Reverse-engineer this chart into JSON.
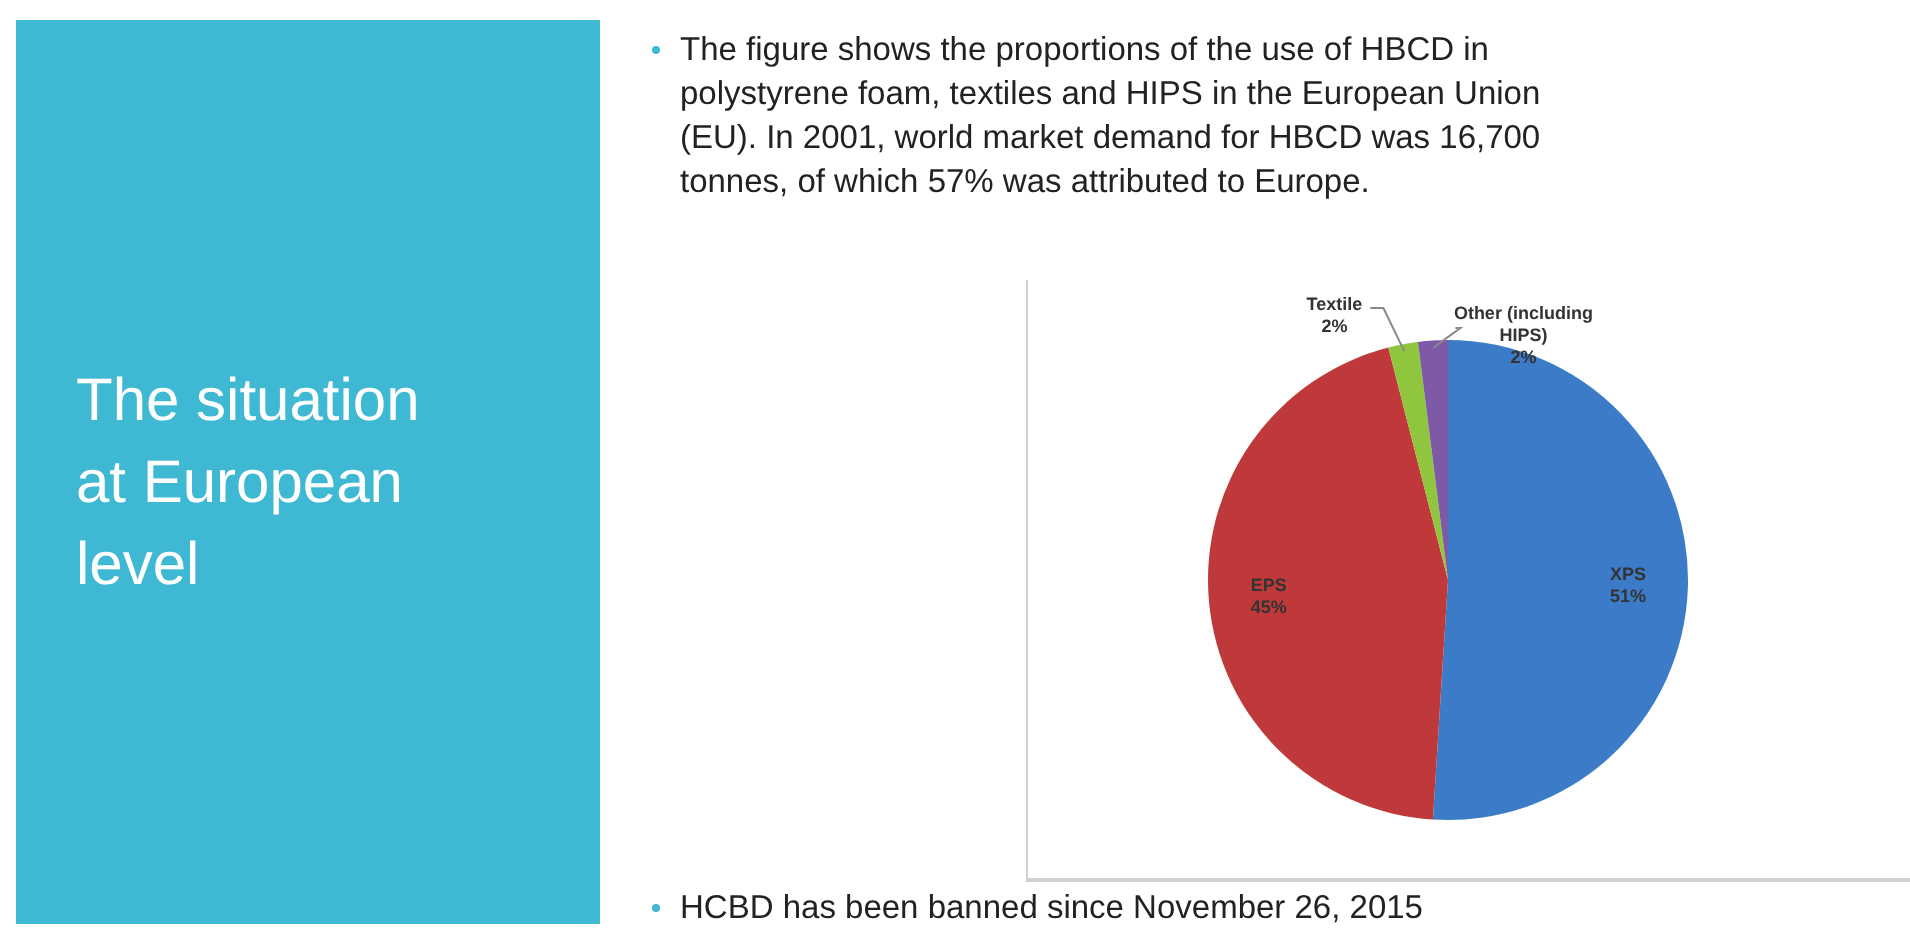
{
  "chart_data": {
    "type": "pie",
    "title": "The situation at European level",
    "annotations": [
      "The figure shows the proportions of the use of HBCD in polystyrene foam, textiles and HIPS in the European Union (EU). In 2001, world market demand for HBCD was 16,700 tonnes, of which 57% was attributed to Europe.",
      "HCBD has been banned since November 26, 2015"
    ],
    "categories": [
      "XPS",
      "EPS",
      "Textile",
      "Other (including HIPS)"
    ],
    "values": [
      51,
      45,
      2,
      2
    ],
    "value_labels": [
      "51%",
      "45%",
      "2%",
      "2%"
    ],
    "colors": [
      "#3c7bc8",
      "#c0393a",
      "#8fc63e",
      "#7e5aa6"
    ],
    "legend": false
  }
}
